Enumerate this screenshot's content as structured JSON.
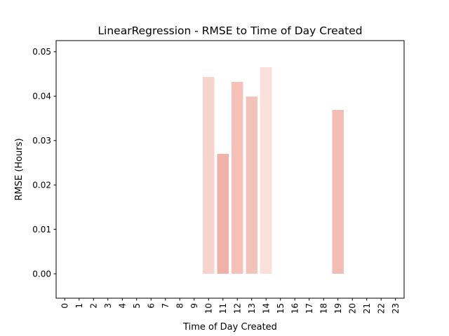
{
  "chart_data": {
    "type": "bar",
    "title": "LinearRegression - RMSE to Time of Day Created",
    "xlabel": "Time of Day Created",
    "ylabel": "RMSE (Hours)",
    "categories": [
      "0",
      "1",
      "2",
      "3",
      "4",
      "5",
      "6",
      "7",
      "8",
      "9",
      "10",
      "11",
      "12",
      "13",
      "14",
      "15",
      "16",
      "17",
      "18",
      "19",
      "20",
      "21",
      "22",
      "23"
    ],
    "values": [
      null,
      null,
      null,
      null,
      null,
      null,
      null,
      null,
      null,
      null,
      0.0443,
      0.027,
      0.0432,
      0.0399,
      0.0465,
      null,
      null,
      null,
      null,
      0.0369,
      null,
      null,
      null,
      null
    ],
    "bar_colors": {
      "10": "#f8d3cc",
      "11": "#efb2a9",
      "12": "#f4c0b8",
      "13": "#f3c2bb",
      "14": "#fbdfd9",
      "19": "#f2bdb5"
    },
    "ylim": [
      -0.0055,
      0.0525
    ],
    "yticks": [
      "0.00",
      "0.01",
      "0.02",
      "0.03",
      "0.04",
      "0.05"
    ],
    "grid": false,
    "legend": "none"
  }
}
